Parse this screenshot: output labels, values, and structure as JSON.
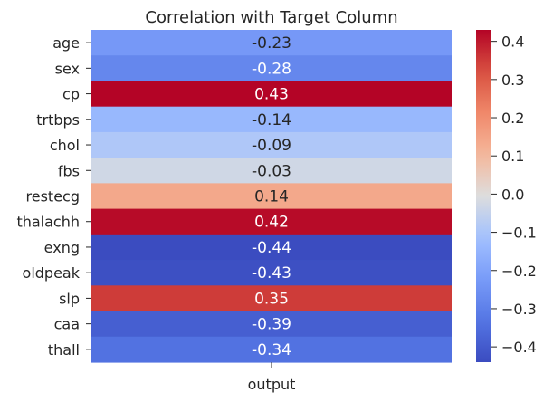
{
  "chart_data": {
    "type": "heatmap",
    "title": "Correlation with Target Column",
    "xlabel": "",
    "ylabel": "",
    "x_categories": [
      "output"
    ],
    "y_categories": [
      "age",
      "sex",
      "cp",
      "trtbps",
      "chol",
      "fbs",
      "restecg",
      "thalachh",
      "exng",
      "oldpeak",
      "slp",
      "caa",
      "thall"
    ],
    "values": [
      -0.23,
      -0.28,
      0.43,
      -0.14,
      -0.09,
      -0.03,
      0.14,
      0.42,
      -0.44,
      -0.43,
      0.35,
      -0.39,
      -0.34
    ],
    "value_labels": [
      "-0.23",
      "-0.28",
      "0.43",
      "-0.14",
      "-0.09",
      "-0.03",
      "0.14",
      "0.42",
      "-0.44",
      "-0.43",
      "0.35",
      "-0.39",
      "-0.34"
    ],
    "colormap": "coolwarm",
    "colorbar": {
      "range": [
        -0.44,
        0.43
      ],
      "ticks": [
        0.4,
        0.3,
        0.2,
        0.1,
        0.0,
        -0.1,
        -0.2,
        -0.3,
        -0.4
      ],
      "tick_labels": [
        "0.4",
        "0.3",
        "0.2",
        "0.1",
        "0.0",
        "−0.1",
        "−0.2",
        "−0.3",
        "−0.4"
      ]
    },
    "grid": false,
    "legend": "colorbar-right"
  }
}
